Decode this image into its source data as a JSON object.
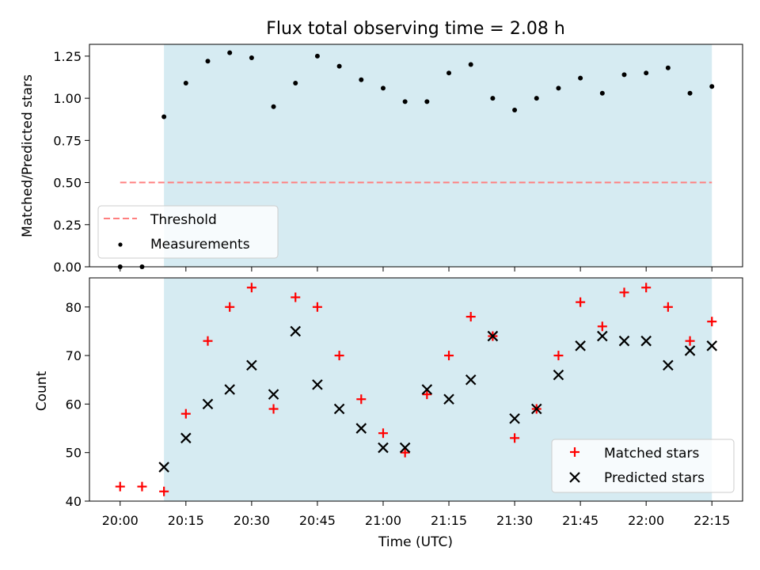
{
  "chart_data": [
    {
      "type": "scatter",
      "title": "Flux total observing time = 2.08 h",
      "xlabel": "",
      "ylabel": "Matched/Predicted stars",
      "ylim": [
        0,
        1.32
      ],
      "yticks": [
        "0.00",
        "0.25",
        "0.50",
        "0.75",
        "1.00",
        "1.25"
      ],
      "ytick_values": [
        0,
        0.25,
        0.5,
        0.75,
        1.0,
        1.25
      ],
      "shaded_region": {
        "start": "20:10",
        "end": "22:15",
        "color": "#add8e6"
      },
      "threshold": {
        "name": "Threshold",
        "value": 0.5,
        "start": "20:00",
        "end": "22:15",
        "color": "#ff7f7f"
      },
      "series": [
        {
          "name": "Measurements",
          "marker": "dot",
          "color": "#000000",
          "points": [
            [
              "20:00",
              0.0
            ],
            [
              "20:05",
              0.0
            ],
            [
              "20:10",
              0.89
            ],
            [
              "20:15",
              1.09
            ],
            [
              "20:20",
              1.22
            ],
            [
              "20:25",
              1.27
            ],
            [
              "20:30",
              1.24
            ],
            [
              "20:35",
              0.95
            ],
            [
              "20:40",
              1.09
            ],
            [
              "20:45",
              1.25
            ],
            [
              "20:50",
              1.19
            ],
            [
              "20:55",
              1.11
            ],
            [
              "21:00",
              1.06
            ],
            [
              "21:05",
              0.98
            ],
            [
              "21:10",
              0.98
            ],
            [
              "21:15",
              1.15
            ],
            [
              "21:20",
              1.2
            ],
            [
              "21:25",
              1.0
            ],
            [
              "21:30",
              0.93
            ],
            [
              "21:35",
              1.0
            ],
            [
              "21:40",
              1.06
            ],
            [
              "21:45",
              1.12
            ],
            [
              "21:50",
              1.03
            ],
            [
              "21:55",
              1.14
            ],
            [
              "22:00",
              1.15
            ],
            [
              "22:05",
              1.18
            ],
            [
              "22:10",
              1.03
            ],
            [
              "22:15",
              1.07
            ]
          ]
        }
      ],
      "legend": {
        "location": "lower-left",
        "entries": [
          "Threshold",
          "Measurements"
        ]
      }
    },
    {
      "type": "scatter",
      "title": "",
      "xlabel": "Time (UTC)",
      "ylabel": "Count",
      "ylim": [
        40,
        86
      ],
      "yticks": [
        "40",
        "50",
        "60",
        "70",
        "80"
      ],
      "ytick_values": [
        40,
        50,
        60,
        70,
        80
      ],
      "xlim": [
        "19:53",
        "22:22"
      ],
      "xticks": [
        "20:00",
        "20:15",
        "20:30",
        "20:45",
        "21:00",
        "21:15",
        "21:30",
        "21:45",
        "22:00",
        "22:15"
      ],
      "shaded_region": {
        "start": "20:10",
        "end": "22:15",
        "color": "#add8e6"
      },
      "series": [
        {
          "name": "Matched stars",
          "marker": "plus",
          "color": "#ff0000",
          "points": [
            [
              "20:00",
              43
            ],
            [
              "20:05",
              43
            ],
            [
              "20:10",
              42
            ],
            [
              "20:15",
              58
            ],
            [
              "20:20",
              73
            ],
            [
              "20:25",
              80
            ],
            [
              "20:30",
              84
            ],
            [
              "20:35",
              59
            ],
            [
              "20:40",
              82
            ],
            [
              "20:45",
              80
            ],
            [
              "20:50",
              70
            ],
            [
              "20:55",
              61
            ],
            [
              "21:00",
              54
            ],
            [
              "21:05",
              50
            ],
            [
              "21:10",
              62
            ],
            [
              "21:15",
              70
            ],
            [
              "21:20",
              78
            ],
            [
              "21:25",
              74
            ],
            [
              "21:30",
              53
            ],
            [
              "21:35",
              59
            ],
            [
              "21:40",
              70
            ],
            [
              "21:45",
              81
            ],
            [
              "21:50",
              76
            ],
            [
              "21:55",
              83
            ],
            [
              "22:00",
              84
            ],
            [
              "22:05",
              80
            ],
            [
              "22:10",
              73
            ],
            [
              "22:15",
              77
            ]
          ]
        },
        {
          "name": "Predicted stars",
          "marker": "x",
          "color": "#000000",
          "points": [
            [
              "20:10",
              47
            ],
            [
              "20:15",
              53
            ],
            [
              "20:20",
              60
            ],
            [
              "20:25",
              63
            ],
            [
              "20:30",
              68
            ],
            [
              "20:35",
              62
            ],
            [
              "20:40",
              75
            ],
            [
              "20:45",
              64
            ],
            [
              "20:50",
              59
            ],
            [
              "20:55",
              55
            ],
            [
              "21:00",
              51
            ],
            [
              "21:05",
              51
            ],
            [
              "21:10",
              63
            ],
            [
              "21:15",
              61
            ],
            [
              "21:20",
              65
            ],
            [
              "21:25",
              74
            ],
            [
              "21:30",
              57
            ],
            [
              "21:35",
              59
            ],
            [
              "21:40",
              66
            ],
            [
              "21:45",
              72
            ],
            [
              "21:50",
              74
            ],
            [
              "21:55",
              73
            ],
            [
              "22:00",
              73
            ],
            [
              "22:05",
              68
            ],
            [
              "22:10",
              71
            ],
            [
              "22:15",
              72
            ]
          ]
        }
      ],
      "legend": {
        "location": "lower-right",
        "entries": [
          "Matched stars",
          "Predicted stars"
        ]
      }
    }
  ]
}
